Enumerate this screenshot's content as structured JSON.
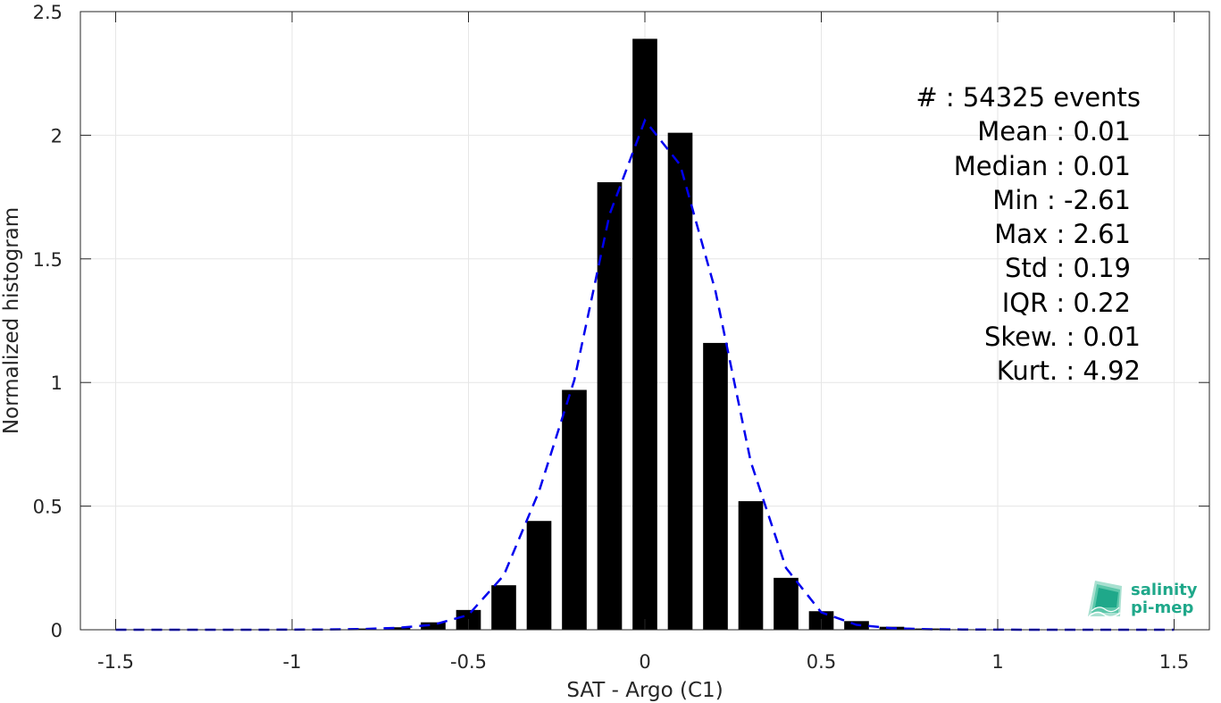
{
  "chart_data": {
    "type": "bar",
    "title": "",
    "xlabel": "SAT - Argo (C1)",
    "ylabel": "Normalized histogram",
    "xlim": [
      -1.6,
      1.6
    ],
    "ylim": [
      0,
      2.5
    ],
    "xticks": [
      -1.5,
      -1,
      -0.5,
      0,
      0.5,
      1,
      1.5
    ],
    "xtick_labels": [
      "-1.5",
      "-1",
      "-0.5",
      "0",
      "0.5",
      "1",
      "1.5"
    ],
    "yticks": [
      0,
      0.5,
      1,
      1.5,
      2,
      2.5
    ],
    "ytick_labels": [
      "0",
      "0.5",
      "1",
      "1.5",
      "2",
      "2.5"
    ],
    "grid": true,
    "bar_color": "#000000",
    "fit_color": "#0000ee",
    "bin_width": 0.1,
    "bins": [
      -1.5,
      -1.4,
      -1.3,
      -1.2,
      -1.1,
      -1.0,
      -0.9,
      -0.8,
      -0.7,
      -0.6,
      -0.5,
      -0.4,
      -0.3,
      -0.2,
      -0.1,
      0.0,
      0.1,
      0.2,
      0.3,
      0.4,
      0.5,
      0.6,
      0.7,
      0.8,
      0.9,
      1.0,
      1.1,
      1.2,
      1.3,
      1.4,
      1.5
    ],
    "values": [
      0.001,
      0.001,
      0.001,
      0.001,
      0.001,
      0.001,
      0.002,
      0.005,
      0.01,
      0.03,
      0.08,
      0.18,
      0.44,
      0.97,
      1.81,
      2.39,
      2.01,
      1.16,
      0.52,
      0.21,
      0.075,
      0.035,
      0.012,
      0.005,
      0.002,
      0.001,
      0.001,
      0.001,
      0.001,
      0.001,
      0.001
    ],
    "fit_curve": {
      "style": "dashed",
      "x": [
        -1.5,
        -1.3,
        -1.1,
        -0.9,
        -0.8,
        -0.7,
        -0.6,
        -0.5,
        -0.4,
        -0.3,
        -0.2,
        -0.1,
        0.0,
        0.1,
        0.2,
        0.3,
        0.4,
        0.5,
        0.6,
        0.7,
        0.8,
        0.9,
        1.1,
        1.3,
        1.5
      ],
      "y": [
        0,
        0,
        0,
        0.001,
        0.003,
        0.008,
        0.02,
        0.06,
        0.22,
        0.56,
        1.01,
        1.68,
        2.06,
        1.88,
        1.37,
        0.68,
        0.25,
        0.07,
        0.02,
        0.006,
        0.002,
        0.001,
        0,
        0,
        0
      ]
    }
  },
  "stats": {
    "lines": [
      "#  : 54325 events",
      "Mean : 0.01",
      "Median : 0.01",
      "Min : -2.61",
      "Max : 2.61",
      "Std : 0.19",
      "IQR : 0.22",
      "Skew. : 0.01",
      "Kurt. : 4.92"
    ]
  },
  "logo": {
    "line1": "salinity",
    "line2": "pi-mep",
    "color": "#1fa88a"
  }
}
